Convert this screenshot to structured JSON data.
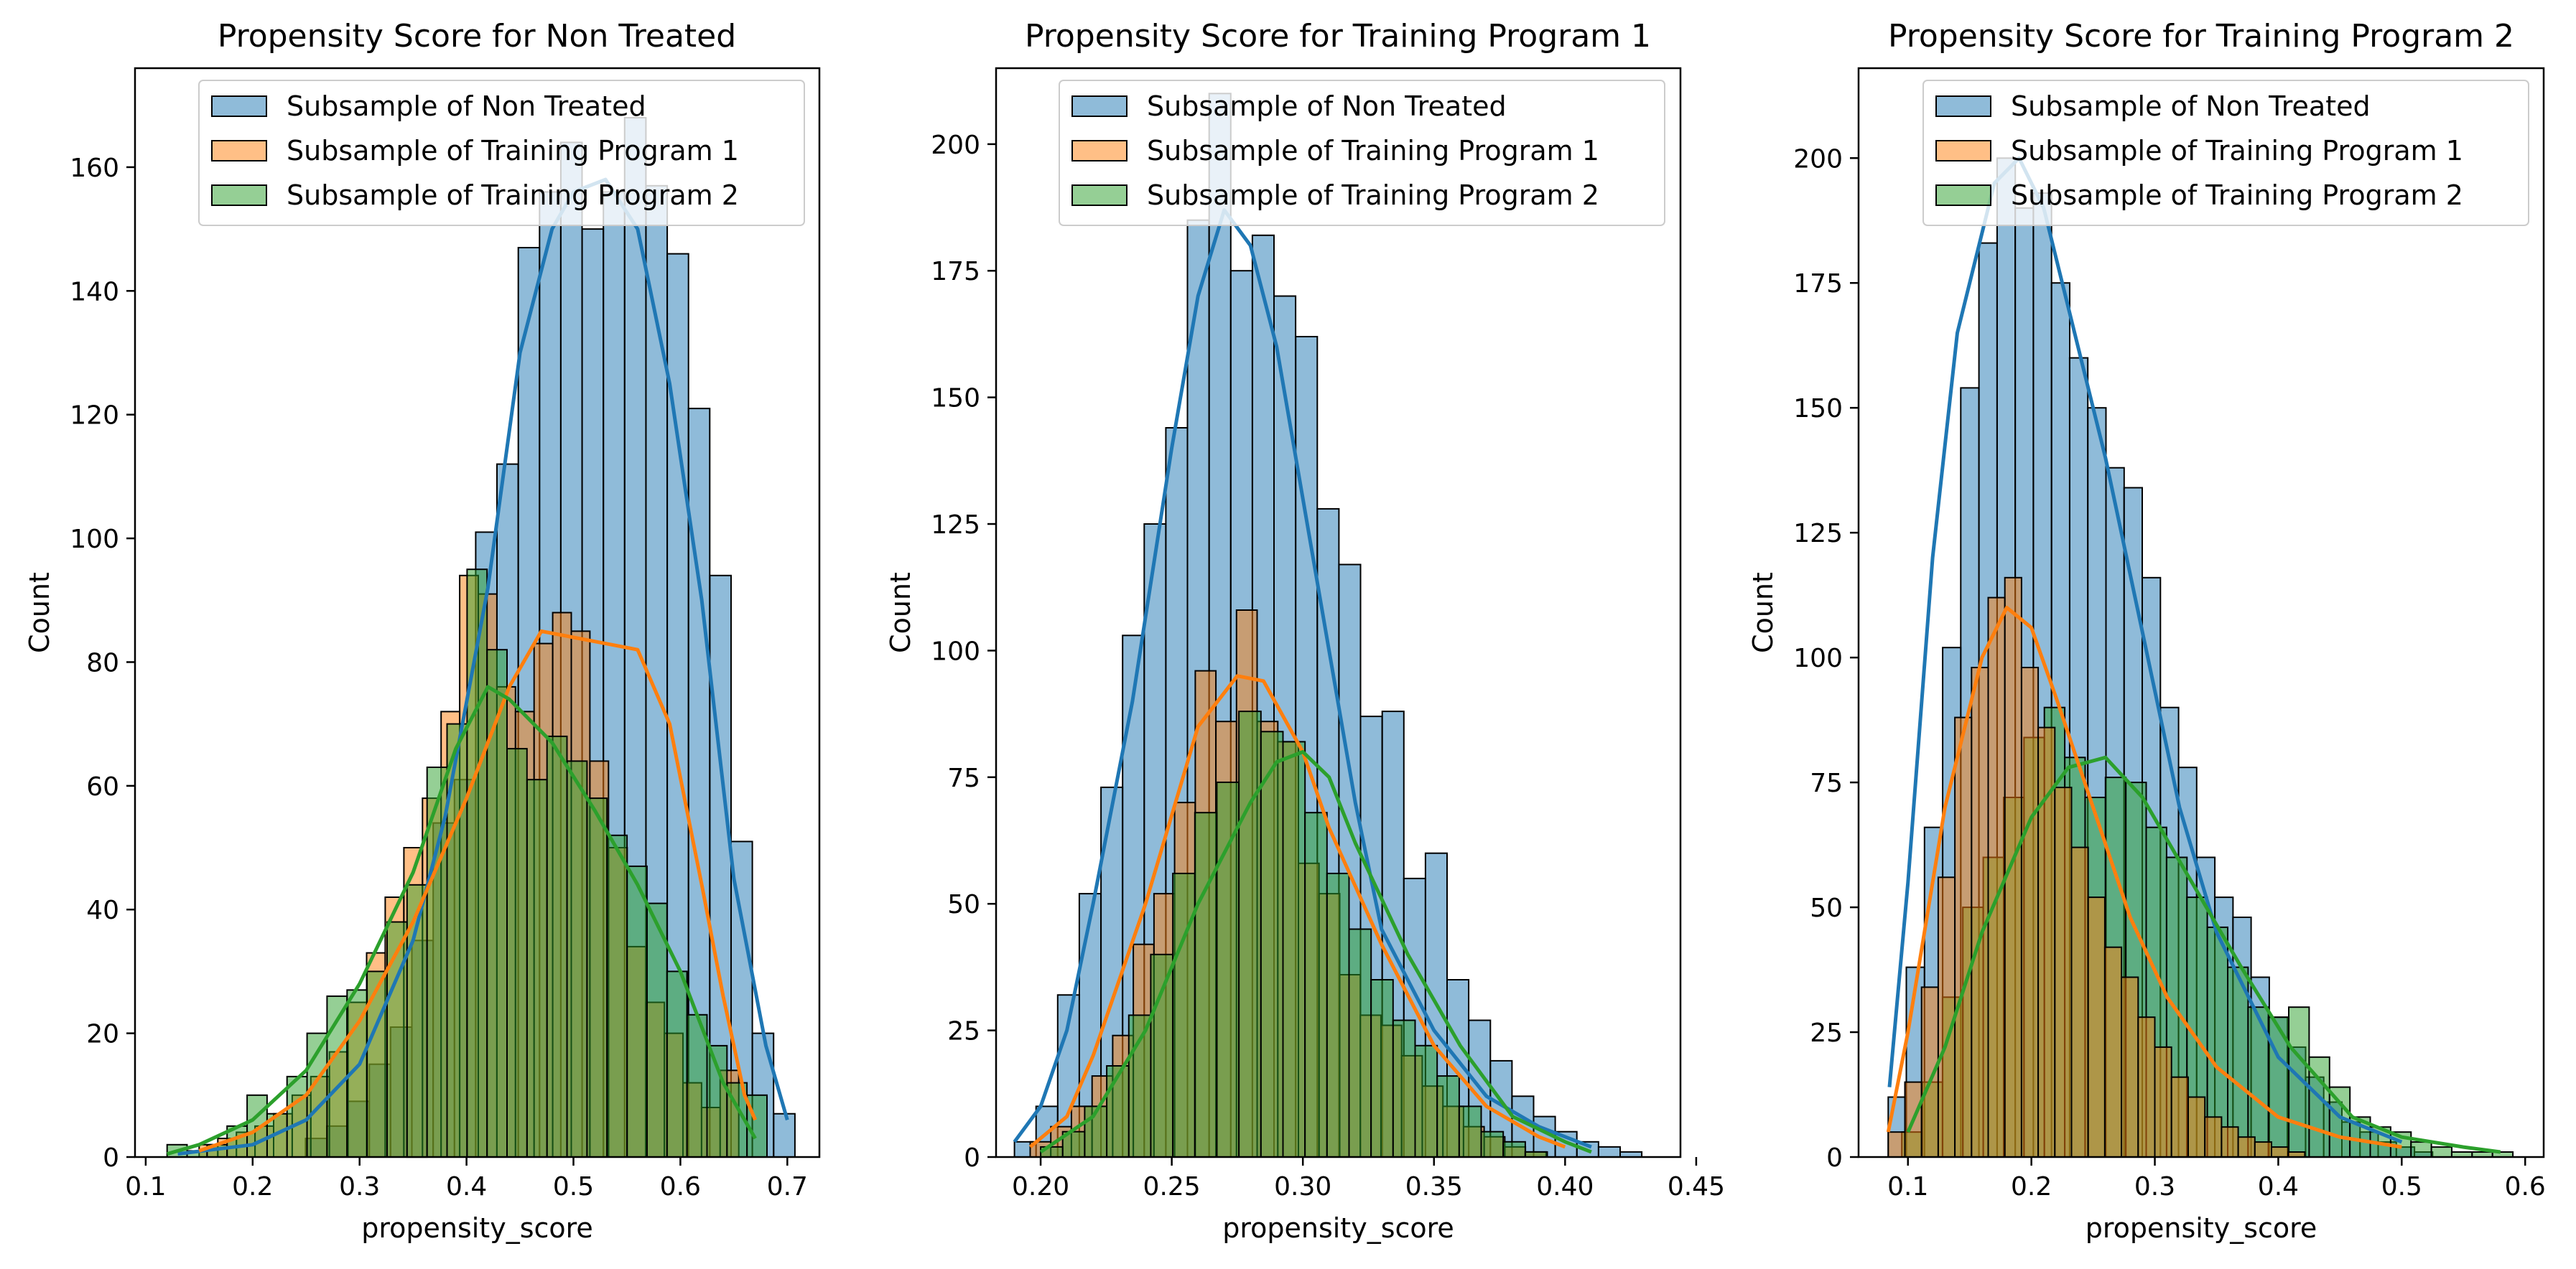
{
  "chart_data": [
    {
      "type": "histogram",
      "title": "Propensity Score for Non Treated",
      "xlabel": "propensity_score",
      "ylabel": "Count",
      "xlim": [
        0.09,
        0.73
      ],
      "ylim": [
        0,
        176
      ],
      "xticks": [
        0.1,
        0.2,
        0.3,
        0.4,
        0.5,
        0.6,
        0.7
      ],
      "xtick_labels": [
        "0.1",
        "0.2",
        "0.3",
        "0.4",
        "0.5",
        "0.6",
        "0.7"
      ],
      "yticks": [
        0,
        20,
        40,
        60,
        80,
        100,
        120,
        140,
        160
      ],
      "ytick_labels": [
        "0",
        "20",
        "40",
        "60",
        "80",
        "100",
        "120",
        "140",
        "160"
      ],
      "legend_position": "top-center",
      "grid": false,
      "series": [
        {
          "name": "Subsample of Non Treated",
          "color": "#1f77b4",
          "bin_start": 0.13,
          "bin_width": 0.0199,
          "counts": [
            0,
            0,
            0,
            0,
            0,
            0,
            3,
            5,
            9,
            15,
            21,
            35,
            54,
            61,
            101,
            112,
            147,
            156,
            164,
            150,
            156,
            168,
            157,
            146,
            121,
            94,
            51,
            20,
            7
          ],
          "kde": [
            [
              0.13,
              0.5
            ],
            [
              0.2,
              2
            ],
            [
              0.25,
              6
            ],
            [
              0.3,
              15
            ],
            [
              0.35,
              35
            ],
            [
              0.38,
              55
            ],
            [
              0.42,
              92
            ],
            [
              0.45,
              130
            ],
            [
              0.48,
              150
            ],
            [
              0.5,
              156
            ],
            [
              0.53,
              158
            ],
            [
              0.56,
              150
            ],
            [
              0.59,
              125
            ],
            [
              0.62,
              90
            ],
            [
              0.65,
              45
            ],
            [
              0.68,
              18
            ],
            [
              0.7,
              6
            ]
          ]
        },
        {
          "name": "Subsample of Training Program 1",
          "color": "#ff7f0e",
          "bin_start": 0.15,
          "bin_width": 0.0174,
          "counts": [
            2,
            3,
            4,
            5,
            7,
            10,
            13,
            17,
            25,
            33,
            42,
            50,
            58,
            72,
            94,
            91,
            76,
            72,
            83,
            88,
            85,
            64,
            50,
            34,
            25,
            20,
            12,
            8,
            14
          ],
          "kde": [
            [
              0.15,
              1
            ],
            [
              0.2,
              4
            ],
            [
              0.25,
              10
            ],
            [
              0.3,
              22
            ],
            [
              0.35,
              38
            ],
            [
              0.4,
              58
            ],
            [
              0.44,
              76
            ],
            [
              0.47,
              85
            ],
            [
              0.5,
              84
            ],
            [
              0.53,
              83
            ],
            [
              0.56,
              82
            ],
            [
              0.59,
              70
            ],
            [
              0.62,
              44
            ],
            [
              0.64,
              26
            ],
            [
              0.66,
              10
            ],
            [
              0.67,
              6
            ]
          ]
        },
        {
          "name": "Subsample of Training Program 2",
          "color": "#2ca02c",
          "bin_start": 0.12,
          "bin_width": 0.0187,
          "counts": [
            2,
            1,
            2,
            5,
            10,
            7,
            13,
            20,
            26,
            27,
            30,
            38,
            44,
            63,
            70,
            95,
            82,
            66,
            61,
            68,
            64,
            58,
            52,
            47,
            41,
            30,
            23,
            18,
            12,
            10
          ],
          "kde": [
            [
              0.12,
              0.5
            ],
            [
              0.15,
              2
            ],
            [
              0.2,
              6
            ],
            [
              0.25,
              14
            ],
            [
              0.3,
              28
            ],
            [
              0.35,
              46
            ],
            [
              0.39,
              66
            ],
            [
              0.42,
              76
            ],
            [
              0.44,
              74
            ],
            [
              0.48,
              67
            ],
            [
              0.52,
              56
            ],
            [
              0.56,
              44
            ],
            [
              0.6,
              30
            ],
            [
              0.64,
              12
            ],
            [
              0.67,
              3
            ]
          ]
        }
      ]
    },
    {
      "type": "histogram",
      "title": "Propensity Score for Training Program 1",
      "xlabel": "propensity_score",
      "ylabel": "Count",
      "xlim": [
        0.183,
        0.444
      ],
      "ylim": [
        0,
        215
      ],
      "xticks": [
        0.2,
        0.25,
        0.3,
        0.35,
        0.4,
        0.45
      ],
      "xtick_labels": [
        "0.20",
        "0.25",
        "0.30",
        "0.35",
        "0.40",
        "0.45"
      ],
      "yticks": [
        0,
        25,
        50,
        75,
        100,
        125,
        150,
        175,
        200
      ],
      "ytick_labels": [
        "0",
        "25",
        "50",
        "75",
        "100",
        "125",
        "150",
        "175",
        "200"
      ],
      "legend_position": "top-center",
      "grid": false,
      "series": [
        {
          "name": "Subsample of Non Treated",
          "color": "#1f77b4",
          "bin_start": 0.19,
          "bin_width": 0.00825,
          "counts": [
            3,
            10,
            32,
            52,
            73,
            103,
            125,
            144,
            185,
            210,
            175,
            182,
            170,
            162,
            128,
            117,
            87,
            88,
            55,
            60,
            35,
            27,
            19,
            12,
            8,
            5,
            3,
            2,
            1,
            0
          ],
          "kde": [
            [
              0.19,
              3
            ],
            [
              0.2,
              10
            ],
            [
              0.21,
              25
            ],
            [
              0.22,
              50
            ],
            [
              0.235,
              90
            ],
            [
              0.25,
              140
            ],
            [
              0.26,
              170
            ],
            [
              0.27,
              187
            ],
            [
              0.28,
              180
            ],
            [
              0.29,
              160
            ],
            [
              0.3,
              130
            ],
            [
              0.31,
              100
            ],
            [
              0.32,
              70
            ],
            [
              0.33,
              45
            ],
            [
              0.35,
              25
            ],
            [
              0.37,
              12
            ],
            [
              0.39,
              6
            ],
            [
              0.41,
              2
            ]
          ]
        },
        {
          "name": "Subsample of Training Program 1",
          "color": "#ff7f0e",
          "bin_start": 0.196,
          "bin_width": 0.00787,
          "counts": [
            3,
            6,
            10,
            16,
            24,
            42,
            52,
            70,
            96,
            86,
            108,
            86,
            82,
            58,
            52,
            36,
            28,
            26,
            20,
            14,
            10,
            6,
            4,
            2,
            1
          ],
          "kde": [
            [
              0.196,
              2
            ],
            [
              0.21,
              8
            ],
            [
              0.22,
              20
            ],
            [
              0.24,
              50
            ],
            [
              0.26,
              85
            ],
            [
              0.275,
              95
            ],
            [
              0.285,
              94
            ],
            [
              0.3,
              80
            ],
            [
              0.31,
              65
            ],
            [
              0.33,
              42
            ],
            [
              0.35,
              22
            ],
            [
              0.37,
              10
            ],
            [
              0.39,
              4
            ],
            [
              0.4,
              2
            ]
          ]
        },
        {
          "name": "Subsample of Training Program 2",
          "color": "#2ca02c",
          "bin_start": 0.2,
          "bin_width": 0.0084,
          "counts": [
            2,
            5,
            10,
            18,
            28,
            40,
            56,
            68,
            74,
            88,
            84,
            82,
            68,
            56,
            45,
            35,
            27,
            22,
            16,
            10,
            5,
            3,
            1
          ],
          "kde": [
            [
              0.2,
              1
            ],
            [
              0.22,
              8
            ],
            [
              0.24,
              25
            ],
            [
              0.26,
              50
            ],
            [
              0.28,
              70
            ],
            [
              0.29,
              78
            ],
            [
              0.3,
              80
            ],
            [
              0.31,
              75
            ],
            [
              0.32,
              62
            ],
            [
              0.34,
              40
            ],
            [
              0.36,
              22
            ],
            [
              0.38,
              8
            ],
            [
              0.4,
              3
            ],
            [
              0.41,
              1
            ]
          ]
        }
      ]
    },
    {
      "type": "histogram",
      "title": "Propensity Score for Training Program 2",
      "xlabel": "propensity_score",
      "ylabel": "Count",
      "xlim": [
        0.06,
        0.615
      ],
      "ylim": [
        0,
        218
      ],
      "xticks": [
        0.1,
        0.2,
        0.3,
        0.4,
        0.5,
        0.6
      ],
      "xtick_labels": [
        "0.1",
        "0.2",
        "0.3",
        "0.4",
        "0.5",
        "0.6"
      ],
      "yticks": [
        0,
        25,
        50,
        75,
        100,
        125,
        150,
        175,
        200
      ],
      "ytick_labels": [
        "0",
        "25",
        "50",
        "75",
        "100",
        "125",
        "150",
        "175",
        "200"
      ],
      "legend_position": "top-right",
      "grid": false,
      "series": [
        {
          "name": "Subsample of Non Treated",
          "color": "#1f77b4",
          "bin_start": 0.084,
          "bin_width": 0.0147,
          "counts": [
            12,
            38,
            66,
            102,
            154,
            183,
            200,
            190,
            193,
            175,
            160,
            150,
            138,
            134,
            116,
            90,
            78,
            60,
            52,
            48,
            36,
            28,
            22,
            16,
            11,
            7,
            5,
            3,
            2,
            1
          ],
          "kde": [
            [
              0.085,
              14
            ],
            [
              0.1,
              55
            ],
            [
              0.12,
              120
            ],
            [
              0.14,
              165
            ],
            [
              0.17,
              195
            ],
            [
              0.19,
              200
            ],
            [
              0.21,
              190
            ],
            [
              0.23,
              170
            ],
            [
              0.26,
              140
            ],
            [
              0.29,
              105
            ],
            [
              0.32,
              70
            ],
            [
              0.35,
              45
            ],
            [
              0.4,
              20
            ],
            [
              0.45,
              8
            ],
            [
              0.5,
              3
            ]
          ]
        },
        {
          "name": "Subsample of Training Program 2",
          "color": "#2ca02c",
          "bin_start": 0.095,
          "bin_width": 0.0165,
          "counts": [
            5,
            15,
            32,
            50,
            60,
            72,
            84,
            90,
            80,
            72,
            76,
            75,
            66,
            60,
            52,
            46,
            38,
            30,
            28,
            30,
            20,
            14,
            8,
            6,
            5,
            3,
            2,
            1,
            1,
            1
          ],
          "kde": [
            [
              0.1,
              5
            ],
            [
              0.13,
              22
            ],
            [
              0.16,
              45
            ],
            [
              0.2,
              68
            ],
            [
              0.23,
              78
            ],
            [
              0.26,
              80
            ],
            [
              0.29,
              72
            ],
            [
              0.33,
              55
            ],
            [
              0.37,
              38
            ],
            [
              0.41,
              22
            ],
            [
              0.46,
              8
            ],
            [
              0.5,
              4
            ],
            [
              0.55,
              2
            ],
            [
              0.58,
              1
            ]
          ]
        },
        {
          "name": "Subsample of Training Program 1",
          "color": "#ff7f0e",
          "bin_start": 0.084,
          "bin_width": 0.0135,
          "counts": [
            5,
            15,
            34,
            56,
            88,
            98,
            112,
            116,
            98,
            86,
            74,
            62,
            52,
            42,
            36,
            28,
            22,
            16,
            12,
            8,
            6,
            4,
            3,
            2,
            1
          ],
          "kde": [
            [
              0.084,
              5
            ],
            [
              0.1,
              25
            ],
            [
              0.13,
              70
            ],
            [
              0.16,
              100
            ],
            [
              0.18,
              110
            ],
            [
              0.2,
              106
            ],
            [
              0.22,
              92
            ],
            [
              0.25,
              70
            ],
            [
              0.28,
              48
            ],
            [
              0.31,
              32
            ],
            [
              0.35,
              18
            ],
            [
              0.4,
              8
            ],
            [
              0.45,
              4
            ],
            [
              0.5,
              2
            ]
          ]
        }
      ]
    }
  ],
  "legend": {
    "entries": [
      {
        "label": "Subsample of Non Treated",
        "color": "#1f77b4"
      },
      {
        "label": "Subsample of Training Program 1",
        "color": "#ff7f0e"
      },
      {
        "label": "Subsample of Training Program 2",
        "color": "#2ca02c"
      }
    ]
  }
}
